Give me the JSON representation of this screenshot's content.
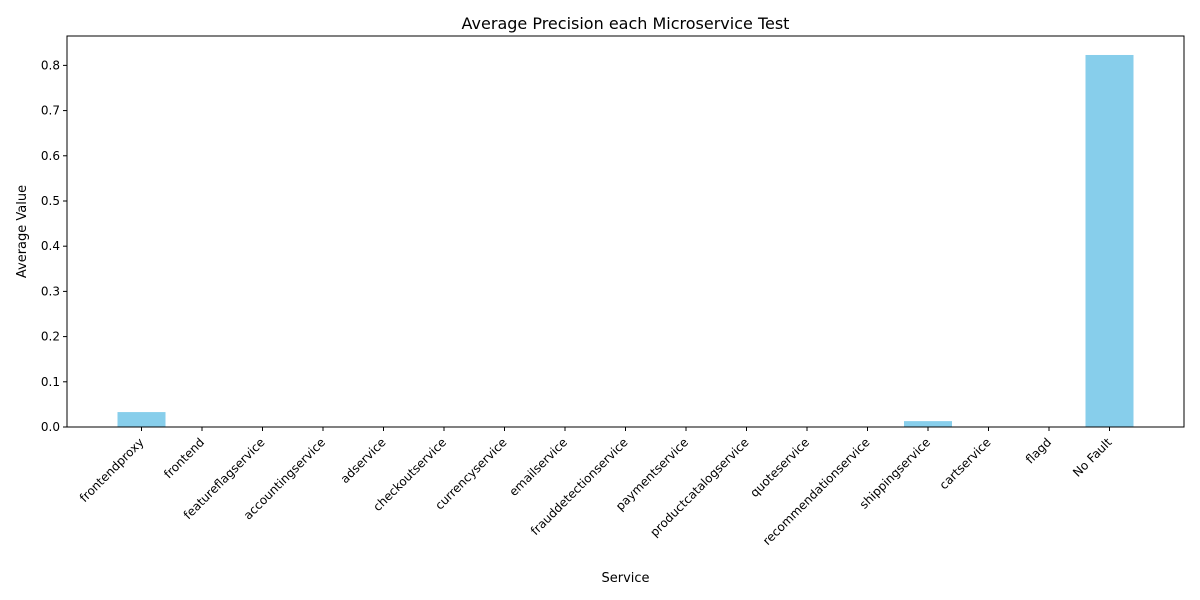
{
  "chart_data": {
    "type": "bar",
    "title": "Average Precision each Microservice Test",
    "xlabel": "Service",
    "ylabel": "Average Value",
    "categories": [
      "frontendproxy",
      "frontend",
      "featureflagservice",
      "accountingservice",
      "adservice",
      "checkoutservice",
      "currencyservice",
      "emailservice",
      "frauddetectionservice",
      "paymentservice",
      "productcatalogservice",
      "quoteservice",
      "recommendationservice",
      "shippingservice",
      "cartservice",
      "flagd",
      "No Fault"
    ],
    "values": [
      0.033,
      0,
      0,
      0,
      0,
      0,
      0,
      0,
      0,
      0,
      0,
      0,
      0,
      0.013,
      0,
      0,
      0.823
    ],
    "ylim": [
      0,
      0.865
    ],
    "yticks": [
      0.0,
      0.1,
      0.2,
      0.3,
      0.4,
      0.5,
      0.6,
      0.7,
      0.8
    ],
    "ytick_labels": [
      "0.0",
      "0.1",
      "0.2",
      "0.3",
      "0.4",
      "0.5",
      "0.6",
      "0.7",
      "0.8"
    ],
    "grid": false,
    "legend": "none",
    "colors": {
      "bar": "#87ceeb",
      "axis": "#000000"
    }
  }
}
